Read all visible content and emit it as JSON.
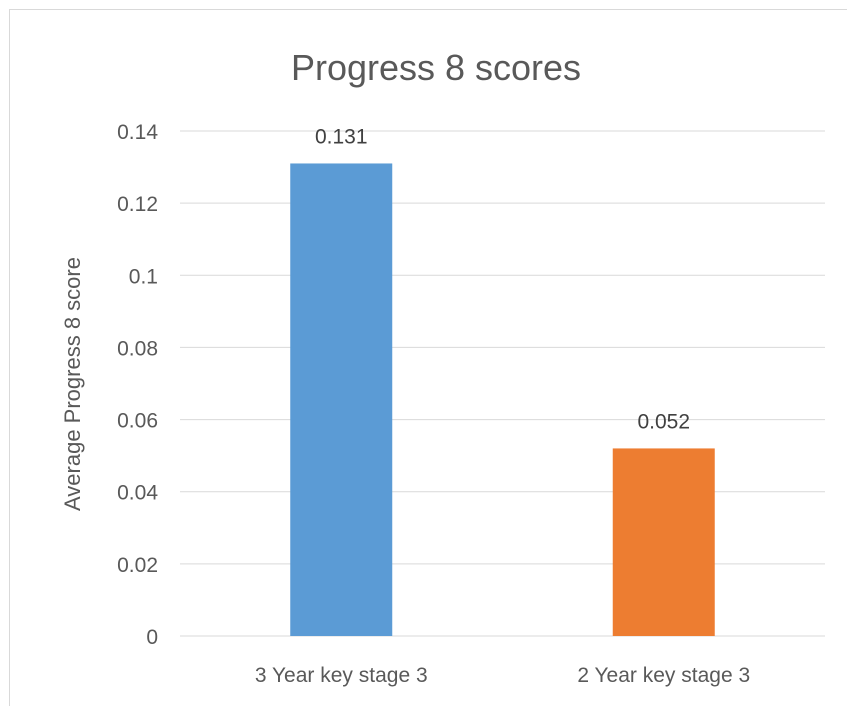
{
  "chart_data": {
    "type": "bar",
    "title": "Progress 8 scores",
    "xlabel": "",
    "ylabel": "Average Progress 8 score",
    "categories": [
      "3 Year key stage 3",
      "2 Year key stage 3"
    ],
    "values": [
      0.131,
      0.052
    ],
    "data_labels": [
      "0.131",
      "0.052"
    ],
    "colors": [
      "#5b9bd5",
      "#ed7d31"
    ],
    "ylim": [
      0,
      0.14
    ],
    "yticks": [
      0,
      0.02,
      0.04,
      0.06,
      0.08,
      0.1,
      0.12,
      0.14
    ],
    "ytick_labels": [
      "0",
      "0.02",
      "0.04",
      "0.06",
      "0.08",
      "0.1",
      "0.12",
      "0.14"
    ],
    "grid": true,
    "legend": "none"
  }
}
